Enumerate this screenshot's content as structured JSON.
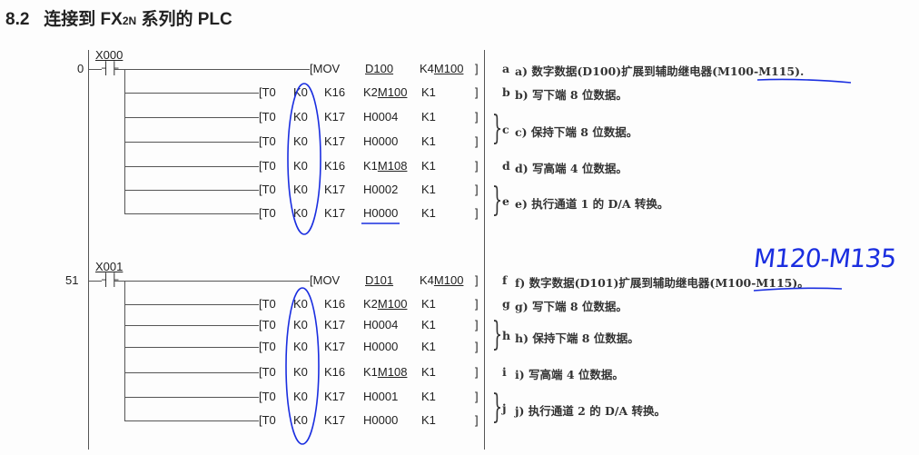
{
  "title": {
    "number": "8.2",
    "text_before": "连接到 FX",
    "subscript": "2N",
    "text_after": " 系列的 PLC"
  },
  "rungs": [
    {
      "step": "0",
      "contact": "X000",
      "mov": {
        "op": "[MOV",
        "src": "D100",
        "dst_prefix": "K4",
        "dst": "M100"
      },
      "to_rows": [
        {
          "op": "[T0",
          "m1": "K0",
          "m2": "K16",
          "s_prefix": "K2",
          "s": "M100",
          "n": "K1"
        },
        {
          "op": "[T0",
          "m1": "K0",
          "m2": "K17",
          "s_prefix": "",
          "s": "H0004",
          "n": "K1"
        },
        {
          "op": "[T0",
          "m1": "K0",
          "m2": "K17",
          "s_prefix": "",
          "s": "H0000",
          "n": "K1"
        },
        {
          "op": "[T0",
          "m1": "K0",
          "m2": "K16",
          "s_prefix": "K1",
          "s": "M108",
          "n": "K1"
        },
        {
          "op": "[T0",
          "m1": "K0",
          "m2": "K17",
          "s_prefix": "",
          "s": "H0002",
          "n": "K1"
        },
        {
          "op": "[T0",
          "m1": "K0",
          "m2": "K17",
          "s_prefix": "",
          "s": "H0000",
          "n": "K1"
        }
      ],
      "comments": [
        {
          "tag": "a",
          "text": "a) 数字数据(D100)扩展到辅助继电器(M100-M115)."
        },
        {
          "tag": "b",
          "text": "b) 写下端 8 位数据。"
        },
        {
          "tag": "c",
          "text": "c) 保持下端 8 位数据。"
        },
        {
          "tag": "d",
          "text": "d) 写高端 4 位数据。"
        },
        {
          "tag": "e",
          "text": "e) 执行通道 1 的 D/A 转换。"
        }
      ]
    },
    {
      "step": "51",
      "contact": "X001",
      "mov": {
        "op": "[MOV",
        "src": "D101",
        "dst_prefix": "K4",
        "dst": "M100"
      },
      "to_rows": [
        {
          "op": "[T0",
          "m1": "K0",
          "m2": "K16",
          "s_prefix": "K2",
          "s": "M100",
          "n": "K1"
        },
        {
          "op": "[T0",
          "m1": "K0",
          "m2": "K17",
          "s_prefix": "",
          "s": "H0004",
          "n": "K1"
        },
        {
          "op": "[T0",
          "m1": "K0",
          "m2": "K17",
          "s_prefix": "",
          "s": "H0000",
          "n": "K1"
        },
        {
          "op": "[T0",
          "m1": "K0",
          "m2": "K16",
          "s_prefix": "K1",
          "s": "M108",
          "n": "K1"
        },
        {
          "op": "[T0",
          "m1": "K0",
          "m2": "K17",
          "s_prefix": "",
          "s": "H0001",
          "n": "K1"
        },
        {
          "op": "[T0",
          "m1": "K0",
          "m2": "K17",
          "s_prefix": "",
          "s": "H0000",
          "n": "K1"
        }
      ],
      "comments": [
        {
          "tag": "f",
          "text": "f) 数字数据(D101)扩展到辅助继电器(M100-M115)。"
        },
        {
          "tag": "g",
          "text": "g) 写下端 8 位数据。"
        },
        {
          "tag": "h",
          "text": "h) 保持下端 8 位数据。"
        },
        {
          "tag": "i",
          "text": "i) 写高端 4 位数据。"
        },
        {
          "tag": "j",
          "text": "j) 执行通道 2 的 D/A 转换。"
        }
      ]
    }
  ],
  "handwritten_note": "M120-M135",
  "colors": {
    "ink": "#222222",
    "annotation_blue": "#1a2ee0"
  }
}
